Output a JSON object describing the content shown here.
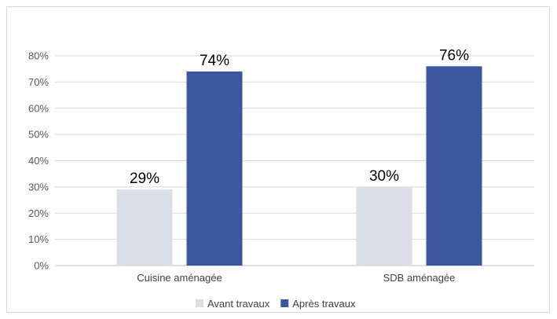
{
  "chart_data": {
    "type": "bar",
    "categories": [
      "Cuisine aménagée",
      "SDB aménagée"
    ],
    "series": [
      {
        "name": "Avant travaux",
        "values": [
          29,
          30
        ],
        "labels": [
          "29%",
          "30%"
        ],
        "color": "#dadfe6"
      },
      {
        "name": "Après travaux",
        "values": [
          74,
          76
        ],
        "labels": [
          "74%",
          "76%"
        ],
        "color": "#3a57a0"
      }
    ],
    "title": "",
    "xlabel": "",
    "ylabel": "",
    "ylim": [
      0,
      80
    ],
    "yticks": [
      "0%",
      "10%",
      "20%",
      "30%",
      "40%",
      "50%",
      "60%",
      "70%",
      "80%"
    ],
    "grid": true,
    "legend_position": "bottom"
  }
}
